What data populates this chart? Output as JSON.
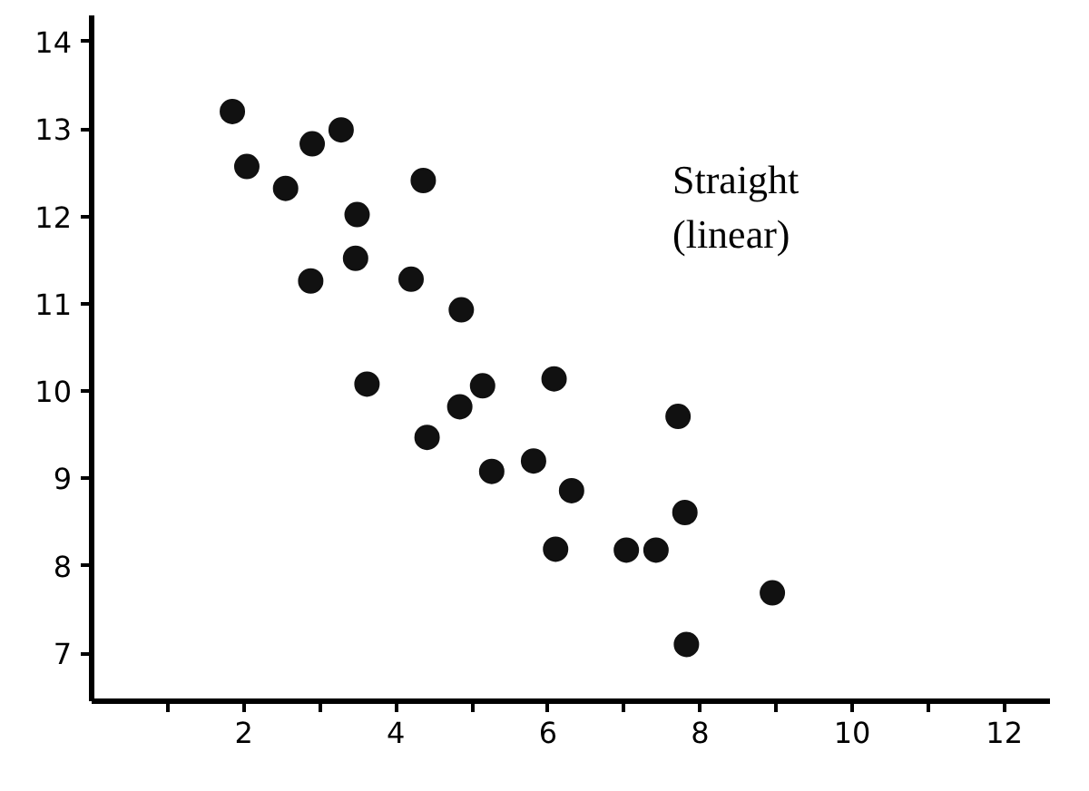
{
  "chart_data": {
    "type": "scatter",
    "annotations": [
      "Straight\n(linear)"
    ],
    "x": [
      1.85,
      2.04,
      2.55,
      2.9,
      3.28,
      2.88,
      3.49,
      3.47,
      4.36,
      4.2,
      4.86,
      3.62,
      4.41,
      4.84,
      5.14,
      5.26,
      6.08,
      7.71,
      5.81,
      6.31,
      7.8,
      6.1,
      7.03,
      7.42,
      8.95,
      7.82
    ],
    "series": [
      {
        "color": "#111111",
        "values": [
          13.2,
          12.57,
          12.32,
          12.83,
          12.99,
          11.26,
          12.02,
          11.52,
          12.41,
          11.28,
          10.93,
          10.08,
          9.47,
          9.82,
          10.06,
          9.08,
          10.14,
          9.71,
          9.2,
          8.86,
          8.61,
          8.19,
          8.18,
          8.18,
          7.69,
          7.1
        ]
      }
    ],
    "marker": "circle",
    "grid": false,
    "xlim": [
      0,
      12.6
    ],
    "ylim": [
      6.45,
      14.3
    ],
    "xticks": [
      {
        "value": 1,
        "label": null
      },
      2,
      {
        "value": 3,
        "label": null
      },
      4,
      {
        "value": 5,
        "label": null
      },
      6,
      {
        "value": 7,
        "label": null
      },
      8,
      {
        "value": 9,
        "label": null
      },
      10,
      {
        "value": 11,
        "label": null
      },
      12
    ],
    "yticks": [
      7,
      8,
      9,
      10,
      11,
      12,
      13,
      14
    ]
  }
}
